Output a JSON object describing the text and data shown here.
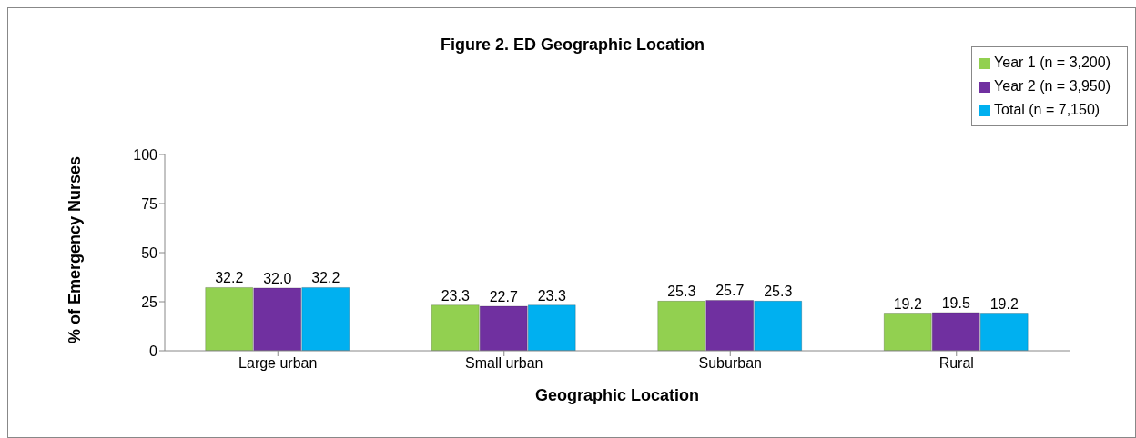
{
  "chart_data": {
    "type": "bar",
    "title": "Figure 2. ED Geographic Location",
    "xlabel": "Geographic Location",
    "ylabel": "% of Emergency Nurses",
    "categories": [
      "Large urban",
      "Small urban",
      "Suburban",
      "Rural"
    ],
    "series": [
      {
        "name": "Year 1 (n = 3,200)",
        "color": "#92d050",
        "values": [
          32.2,
          23.3,
          25.3,
          19.2
        ],
        "value_labels": [
          "32.2",
          "23.3",
          "25.3",
          "19.2"
        ]
      },
      {
        "name": "Year 2 (n = 3,950)",
        "color": "#7030a0",
        "values": [
          32.0,
          22.7,
          25.7,
          19.5
        ],
        "value_labels": [
          "32.0",
          "22.7",
          "25.7",
          "19.5"
        ]
      },
      {
        "name": "Total (n = 7,150)",
        "color": "#00b0f0",
        "values": [
          32.2,
          23.3,
          25.3,
          19.2
        ],
        "value_labels": [
          "32.2",
          "23.3",
          "25.3",
          "19.2"
        ]
      }
    ],
    "ylim": [
      0,
      100
    ],
    "yticks": [
      0,
      25,
      50,
      75,
      100
    ],
    "grid": false,
    "legend": "top right"
  }
}
